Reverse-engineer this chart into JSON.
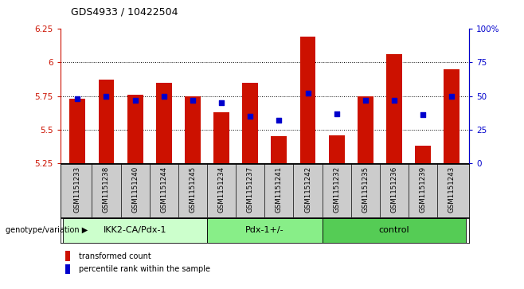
{
  "title": "GDS4933 / 10422504",
  "samples": [
    "GSM1151233",
    "GSM1151238",
    "GSM1151240",
    "GSM1151244",
    "GSM1151245",
    "GSM1151234",
    "GSM1151237",
    "GSM1151241",
    "GSM1151242",
    "GSM1151232",
    "GSM1151235",
    "GSM1151236",
    "GSM1151239",
    "GSM1151243"
  ],
  "bar_values": [
    5.73,
    5.87,
    5.76,
    5.85,
    5.75,
    5.63,
    5.85,
    5.45,
    6.19,
    5.46,
    5.75,
    6.06,
    5.38,
    5.95
  ],
  "dot_values": [
    48,
    50,
    47,
    50,
    47,
    45,
    35,
    32,
    52,
    37,
    47,
    47,
    36,
    50
  ],
  "groups": [
    {
      "label": "IKK2-CA/Pdx-1",
      "start": 0,
      "end": 5,
      "color": "#ccffcc"
    },
    {
      "label": "Pdx-1+/-",
      "start": 5,
      "end": 9,
      "color": "#88ee88"
    },
    {
      "label": "control",
      "start": 9,
      "end": 14,
      "color": "#55cc55"
    }
  ],
  "ymin": 5.25,
  "ymax": 6.25,
  "yticks": [
    5.25,
    5.5,
    5.75,
    6.0,
    6.25
  ],
  "ytick_labels": [
    "5.25",
    "5.5",
    "5.75",
    "6",
    "6.25"
  ],
  "y2min": 0,
  "y2max": 100,
  "y2ticks": [
    0,
    25,
    50,
    75,
    100
  ],
  "y2tick_labels": [
    "0",
    "25",
    "50",
    "75",
    "100%"
  ],
  "bar_color": "#cc1100",
  "dot_color": "#0000cc",
  "bar_width": 0.55,
  "genotype_label": "genotype/variation",
  "legend_bar": "transformed count",
  "legend_dot": "percentile rank within the sample",
  "gridlines": [
    5.5,
    5.75,
    6.0
  ],
  "label_bg": "#cccccc",
  "plot_bg": "#ffffff"
}
